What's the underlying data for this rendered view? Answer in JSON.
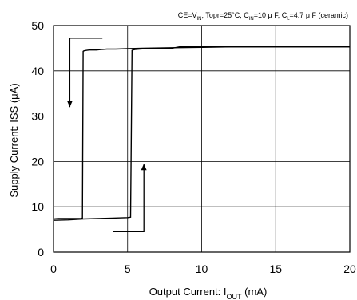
{
  "chart_data": {
    "type": "line",
    "conditions": {
      "prefix": "CE=V",
      "prefix_sub": "IN",
      "mid1": ", Topr=25°C, C",
      "mid1_sub": "IN",
      "mid2": "=10 μ F, C",
      "mid2_sub": "L",
      "suffix": "=4.7 μ F (ceramic)"
    },
    "xlabel": {
      "main": "Output Current: I",
      "sub": "OUT",
      "unit": " (mA)"
    },
    "ylabel": "Supply Current: ISS (μA)",
    "xlim": [
      0,
      20
    ],
    "ylim": [
      0,
      50
    ],
    "xticks": [
      0,
      5,
      10,
      15,
      20
    ],
    "yticks": [
      0,
      10,
      20,
      30,
      40,
      50
    ],
    "grid": true,
    "line_color": "#000000",
    "series": [
      {
        "direction": "decreasing",
        "x": [
          0,
          0.3,
          0.6,
          1.0,
          1.4,
          1.8,
          1.95,
          2.0,
          2.05,
          2.2,
          2.4,
          2.6,
          2.9,
          3.2,
          3.6,
          4.2,
          5.0,
          6.0,
          8.0,
          10.0,
          12.0,
          15.0,
          18.0,
          20.0
        ],
        "y": [
          7.3,
          7.4,
          7.4,
          7.4,
          7.4,
          7.4,
          7.5,
          44.3,
          44.4,
          44.5,
          44.6,
          44.6,
          44.6,
          44.7,
          44.8,
          44.8,
          44.9,
          45.0,
          45.1,
          45.2,
          45.3,
          45.3,
          45.3,
          45.3
        ]
      },
      {
        "direction": "increasing",
        "x": [
          0,
          1.0,
          2.0,
          3.0,
          4.0,
          5.0,
          5.2,
          5.3,
          5.35,
          5.5,
          5.8,
          6.2,
          7.0,
          8.0,
          8.5,
          10.0,
          12.0,
          15.0,
          18.0,
          20.0
        ],
        "y": [
          7.0,
          7.1,
          7.3,
          7.4,
          7.5,
          7.6,
          7.7,
          44.5,
          44.6,
          44.7,
          44.8,
          44.9,
          45.0,
          45.0,
          45.3,
          45.3,
          45.3,
          45.3,
          45.3,
          45.3
        ]
      }
    ],
    "annotations": [
      {
        "points": [
          [
            3.3,
            47.2
          ],
          [
            1.1,
            47.2
          ],
          [
            1.1,
            32.0
          ]
        ],
        "arrow": "end"
      },
      {
        "points": [
          [
            4.0,
            4.5
          ],
          [
            6.1,
            4.5
          ],
          [
            6.1,
            19.5
          ]
        ],
        "arrow": "end"
      }
    ]
  }
}
